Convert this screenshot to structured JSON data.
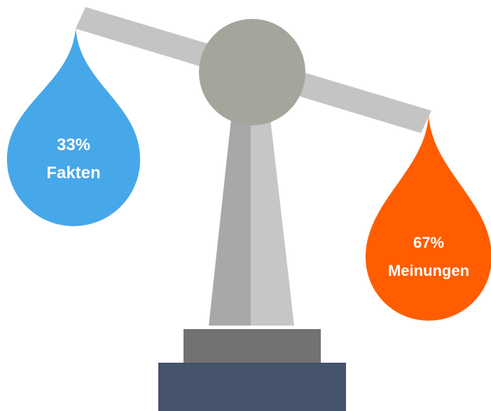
{
  "items": [
    {
      "value": "33%",
      "label": "Fakten",
      "color": "#46a7e9"
    },
    {
      "value": "67%",
      "label": "Meinungen",
      "color": "#ff5d00"
    }
  ]
}
